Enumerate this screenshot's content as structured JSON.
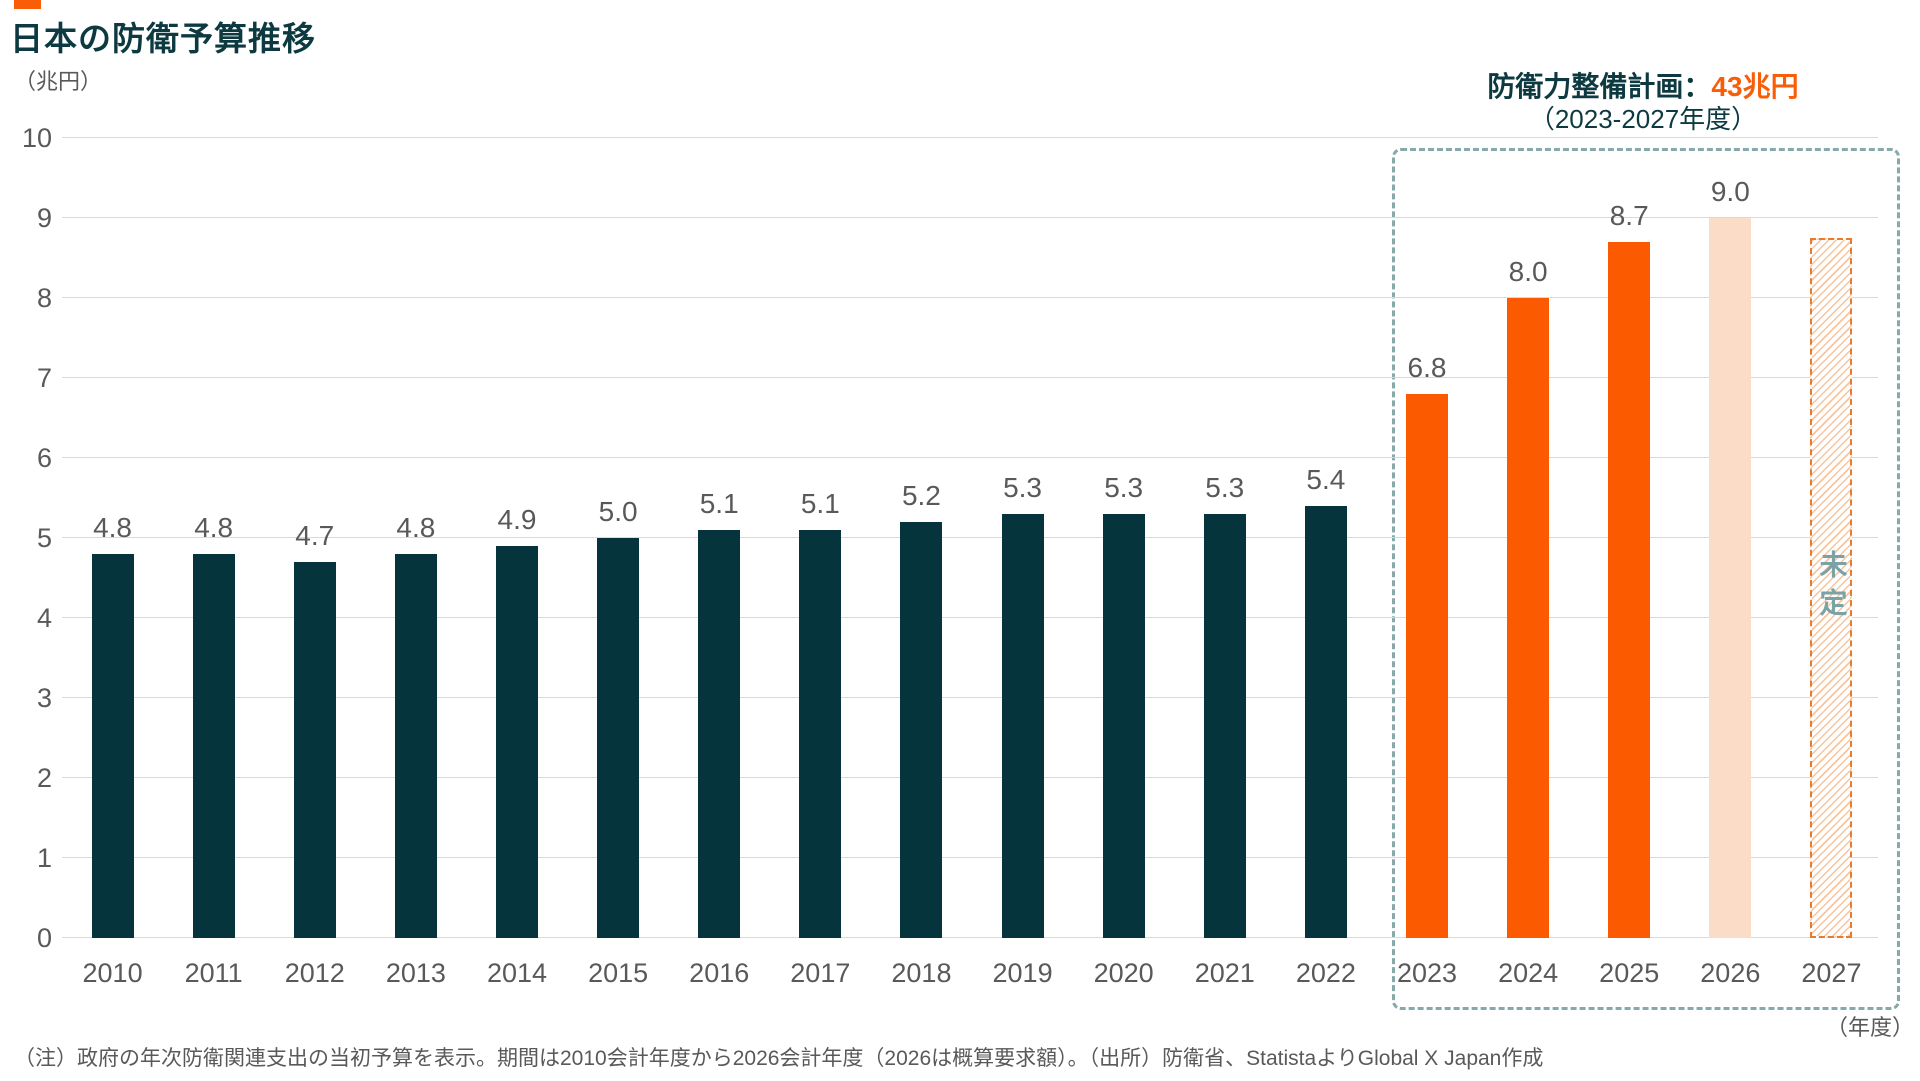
{
  "header": {
    "title": "日本の防衛予算推移"
  },
  "axis": {
    "unit": "（兆円）",
    "x_suffix": "（年度）"
  },
  "annotation": {
    "label": "防衛力整備計画：",
    "value": "43兆円",
    "period": "（2023-2027年度）"
  },
  "footnote": "（注）政府の年次防衛関連支出の当初予算を表示。期間は2010会計年度から2026会計年度（2026は概算要求額）。（出所）防衛省、StatistaよりGlobal X Japan作成",
  "chart_data": {
    "type": "bar",
    "title": "日本の防衛予算推移",
    "ylabel": "（兆円）",
    "xlabel": "（年度）",
    "ylim": [
      0,
      10
    ],
    "ytick_step": 1,
    "grid": true,
    "legend": "none",
    "categories": [
      "2010",
      "2011",
      "2012",
      "2013",
      "2014",
      "2015",
      "2016",
      "2017",
      "2018",
      "2019",
      "2020",
      "2021",
      "2022",
      "2023",
      "2024",
      "2025",
      "2026",
      "2027"
    ],
    "values": [
      4.8,
      4.8,
      4.7,
      4.8,
      4.9,
      5.0,
      5.1,
      5.1,
      5.2,
      5.3,
      5.3,
      5.3,
      5.4,
      6.8,
      8.0,
      8.7,
      9.0,
      null
    ],
    "value_labels": [
      "4.8",
      "4.8",
      "4.7",
      "4.8",
      "4.9",
      "5.0",
      "5.1",
      "5.1",
      "5.2",
      "5.3",
      "5.3",
      "5.3",
      "5.4",
      "6.8",
      "8.0",
      "8.7",
      "9.0",
      ""
    ],
    "styles": [
      "actual",
      "actual",
      "actual",
      "actual",
      "actual",
      "actual",
      "actual",
      "actual",
      "actual",
      "actual",
      "actual",
      "actual",
      "actual",
      "plan",
      "plan",
      "plan",
      "request",
      "tbd"
    ],
    "undetermined": {
      "label": "未定",
      "bar_height": 8.75
    },
    "highlight_box_years": [
      "2023",
      "2024",
      "2025",
      "2026",
      "2027"
    ]
  },
  "colors": {
    "accent_orange": "#f95d07",
    "title_teal": "#0d3a40",
    "bar_teal": "#06343c",
    "bar_orange": "#fb5a00",
    "bar_peach": "#fbdcc7",
    "hatch_stripe": "#f6c49e",
    "hatch_border": "#e97b2e",
    "box_dash": "#87a9a9",
    "tbd_text": "#7ba3a6",
    "label_gray": "#595959",
    "gridline": "#d9d9d9"
  }
}
